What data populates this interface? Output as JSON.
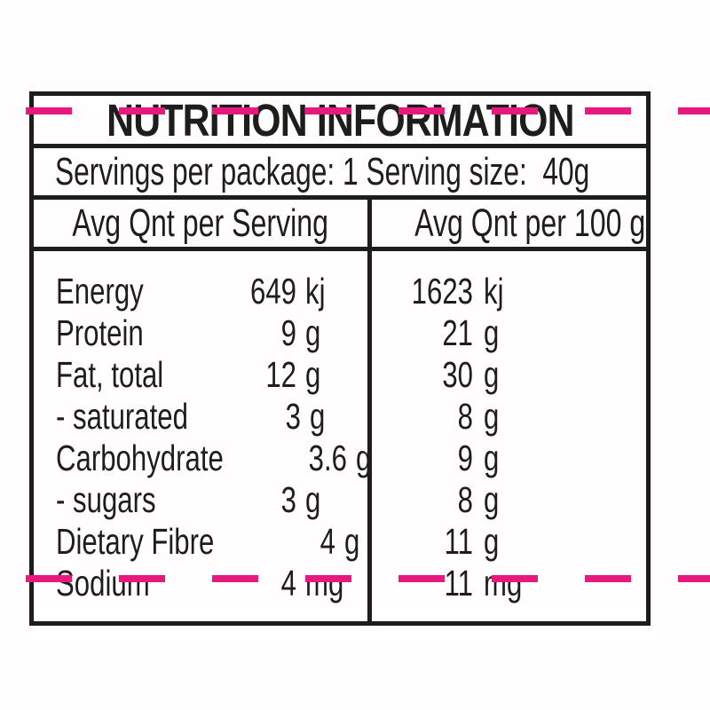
{
  "colors": {
    "bg": "#fffdfd",
    "ink": "#1d1d1b",
    "pink": "#e8197c"
  },
  "cut_marks": {
    "top_line": "pink-dashed-line",
    "bottom_line": "pink-dashed-line"
  },
  "nutrition": {
    "title": "NUTRITION INFORMATION",
    "servings_line": "Servings per package: 1 Serving size:  40g",
    "column_headers": {
      "per_serving": "Avg Qnt per Serving",
      "per_100g": "Avg Qnt per 100 g"
    },
    "rows": [
      {
        "name": "Energy",
        "serving_value": "649",
        "serving_unit": "kj",
        "per100_value": "1623",
        "per100_unit": "kj"
      },
      {
        "name": "Protein",
        "serving_value": "9",
        "serving_unit": "g",
        "per100_value": "21",
        "per100_unit": "g"
      },
      {
        "name": "Fat, total",
        "serving_value": "12",
        "serving_unit": "g",
        "per100_value": "30",
        "per100_unit": "g"
      },
      {
        "name": "- saturated",
        "serving_value": "3",
        "serving_unit": "g",
        "per100_value": "8",
        "per100_unit": "g"
      },
      {
        "name": "Carbohydrate",
        "serving_value": "3.6",
        "serving_unit": "g",
        "per100_value": "9",
        "per100_unit": "g"
      },
      {
        "name": "- sugars",
        "serving_value": "3",
        "serving_unit": "g",
        "per100_value": "8",
        "per100_unit": "g"
      },
      {
        "name": "Dietary Fibre",
        "serving_value": "4",
        "serving_unit": "g",
        "per100_value": "11",
        "per100_unit": "g"
      },
      {
        "name": "Sodium",
        "serving_value": "4",
        "serving_unit": "mg",
        "per100_value": "11",
        "per100_unit": "mg"
      }
    ]
  }
}
